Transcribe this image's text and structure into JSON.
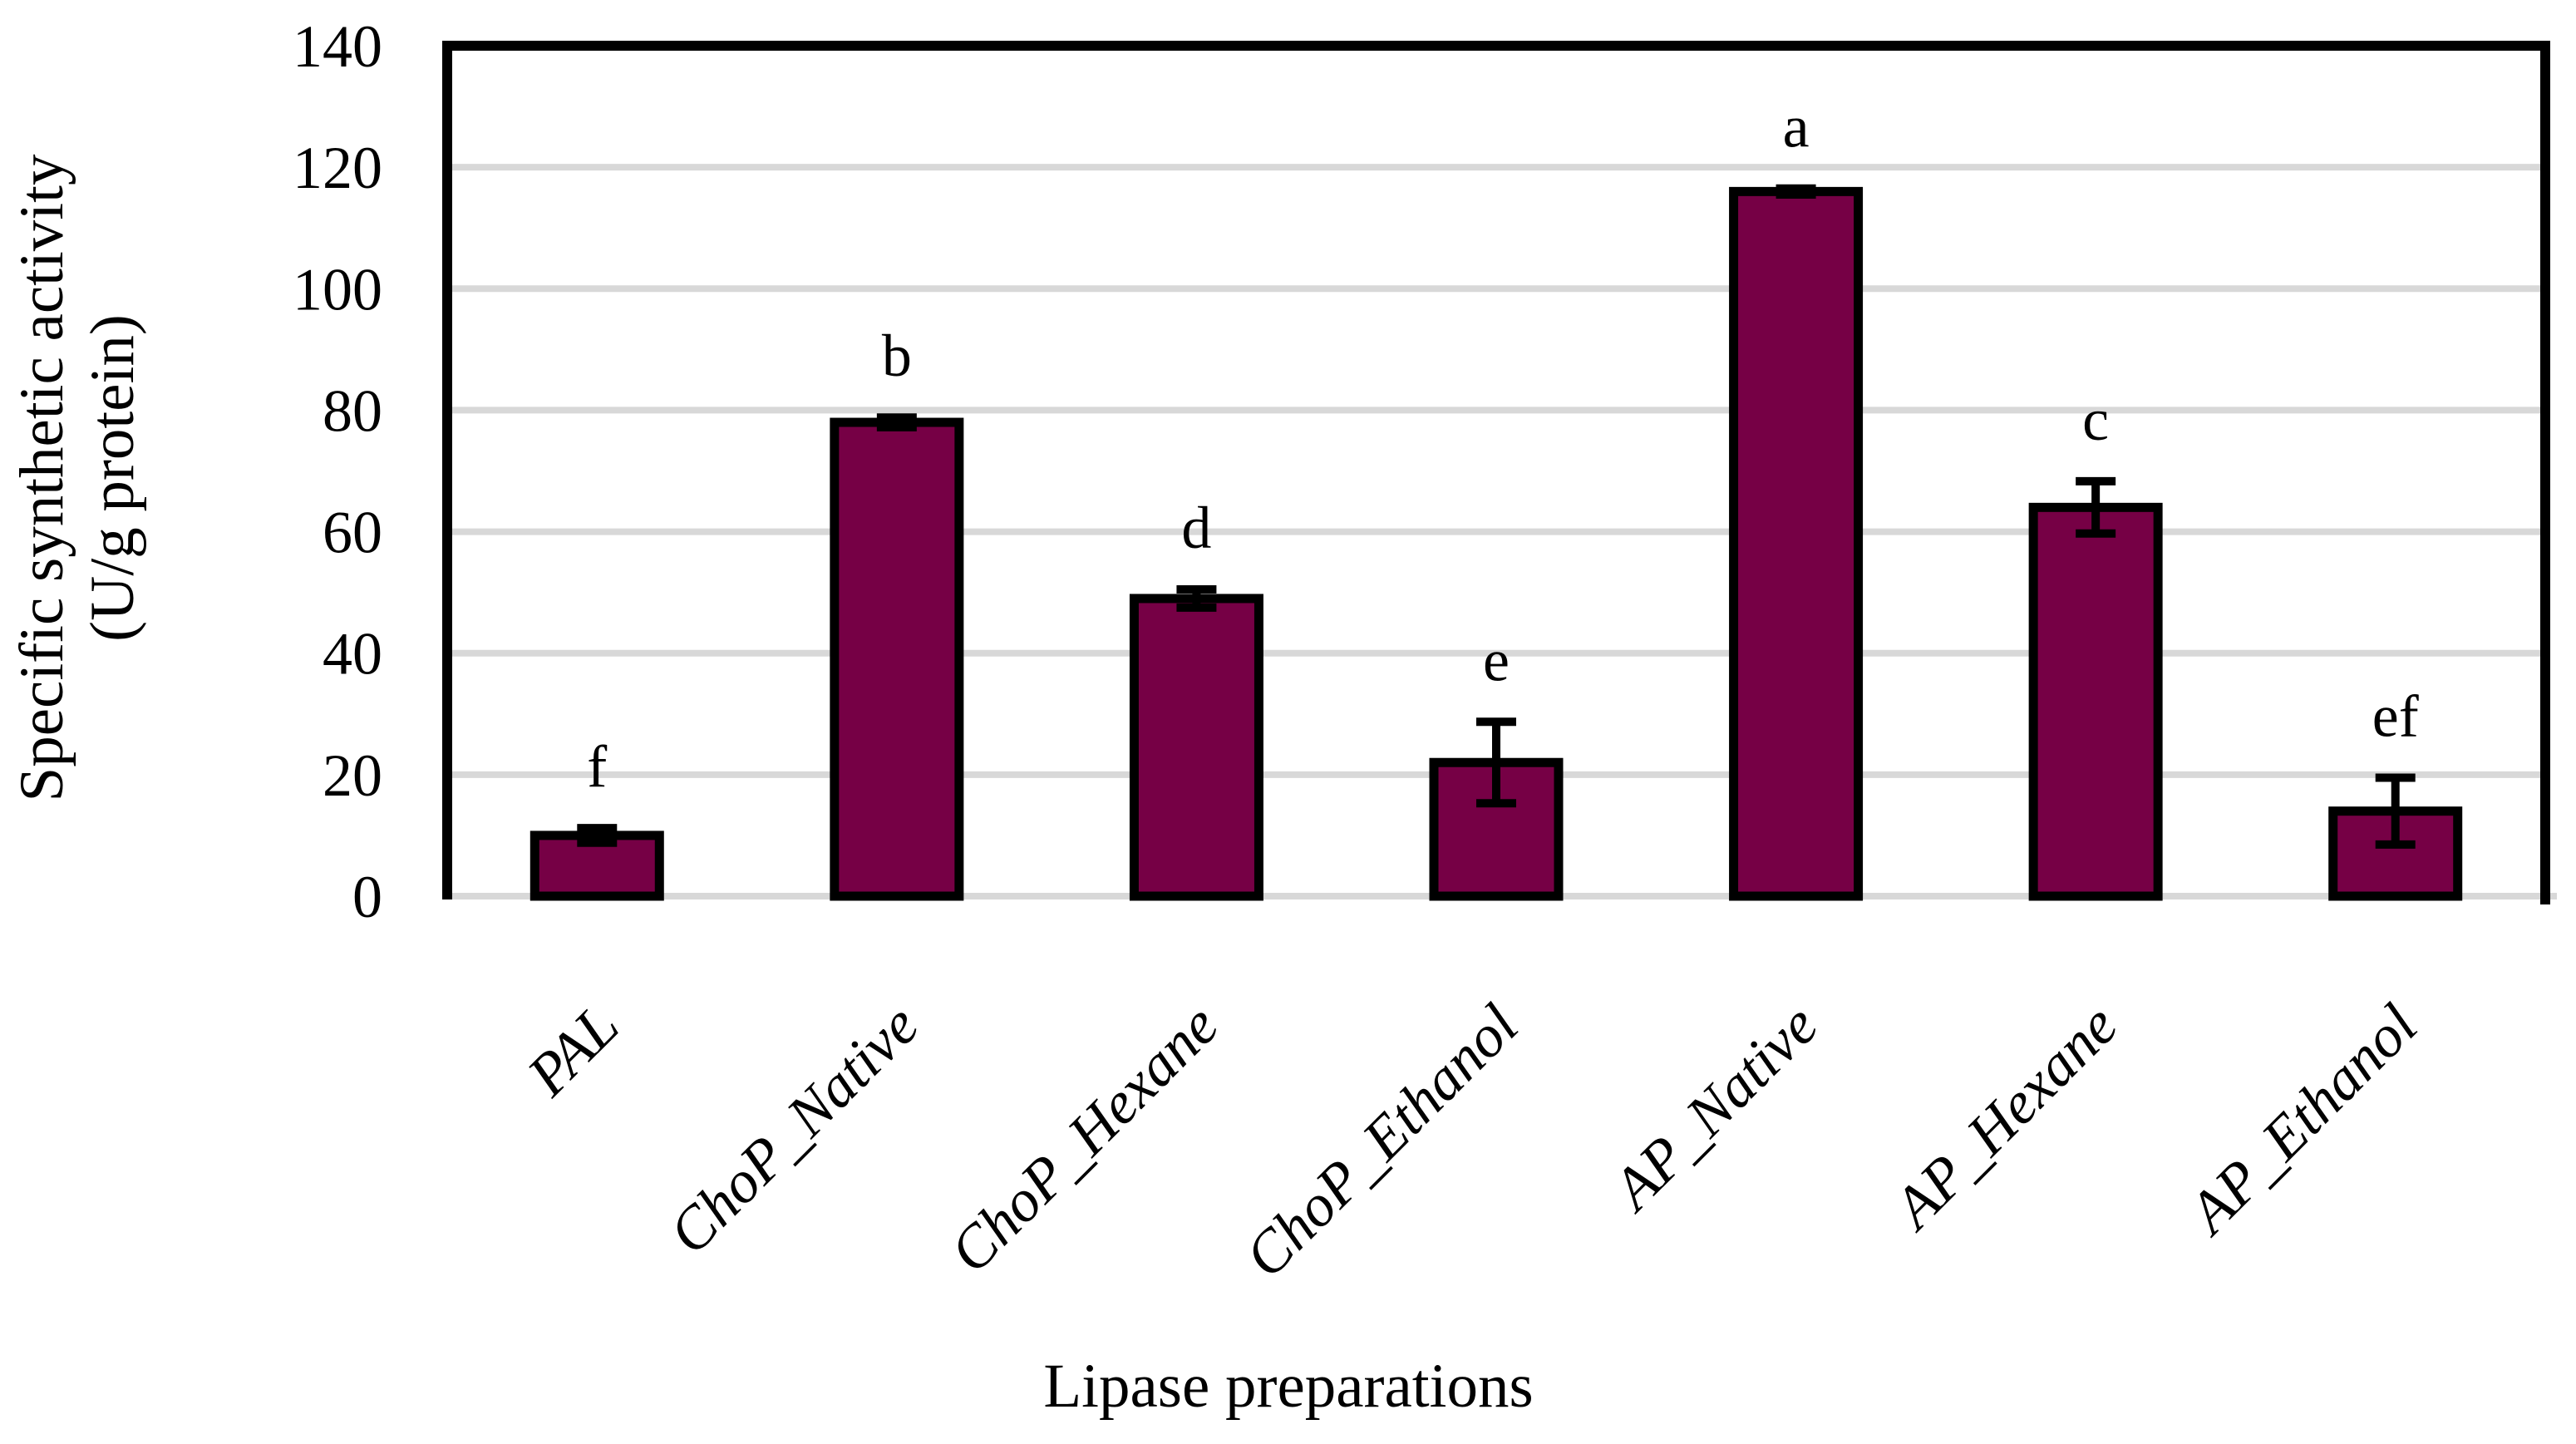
{
  "figure": {
    "background": "#ffffff"
  },
  "chart_data": {
    "type": "bar",
    "title": "",
    "xlabel": "Lipase preparations",
    "ylabel": "Specific synthetic activity (U/g protein)",
    "ylabel_lines": [
      "Specific synthetic activity",
      "(U/g protein)"
    ],
    "categories": [
      "PAL",
      "ChoP_Native",
      "ChoP_Hexane",
      "ChoP_Ethanol",
      "AP_Native",
      "AP_Hexane",
      "AP_Ethanol"
    ],
    "values": [
      10,
      78,
      49,
      22,
      116,
      64,
      14
    ],
    "errors": [
      1.2,
      0.8,
      1.5,
      6.7,
      0.5,
      4.3,
      5.5
    ],
    "sig_letters": [
      "f",
      "b",
      "d",
      "e",
      "a",
      "c",
      "ef"
    ],
    "ylim": [
      0,
      140
    ],
    "ytick_step": 20,
    "yticks": [
      "0",
      "20",
      "40",
      "60",
      "80",
      "100",
      "120",
      "140"
    ],
    "grid": true,
    "legend": "none",
    "bar_color": "#760045",
    "bar_border_color": "#000000",
    "error_bar_color": "#000000",
    "gridline_color": "#d8d8d8",
    "axis_color": "#000000",
    "text_color": "#000000"
  }
}
